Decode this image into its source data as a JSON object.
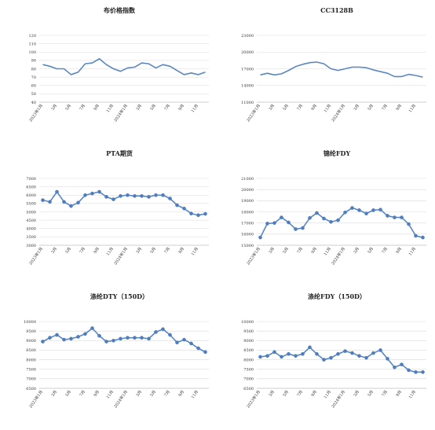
{
  "chart_data": [
    {
      "type": "line",
      "title": "布价格指数",
      "ylim": [
        40,
        120
      ],
      "yticks": [
        40,
        50,
        60,
        70,
        80,
        90,
        100,
        110,
        120
      ],
      "marker": "none",
      "categories": [
        "2023年1月",
        "2月",
        "3月",
        "4月",
        "5月",
        "6月",
        "7月",
        "8月",
        "9月",
        "10月",
        "11月",
        "12月",
        "2024年1月",
        "2月",
        "3月",
        "4月",
        "5月",
        "6月",
        "7月",
        "8月",
        "9月",
        "10月",
        "11月",
        "12月"
      ],
      "xtick_labels": [
        "2023年1月",
        "3月",
        "5月",
        "7月",
        "9月",
        "11月",
        "2024年1月",
        "3月",
        "5月",
        "7月",
        "9月",
        "11月"
      ],
      "values": [
        85,
        83,
        80,
        80,
        73,
        76,
        86,
        87,
        92,
        85,
        80,
        77,
        81,
        82,
        87,
        86,
        81,
        85,
        83,
        78,
        73,
        75,
        73,
        76
      ]
    },
    {
      "type": "line",
      "title": "CC3128B",
      "ylim": [
        11000,
        23000
      ],
      "yticks": [
        11000,
        14000,
        17000,
        20000,
        23000
      ],
      "marker": "none",
      "categories": [
        "2023年1月",
        "2月",
        "3月",
        "4月",
        "5月",
        "6月",
        "7月",
        "8月",
        "9月",
        "10月",
        "11月",
        "12月",
        "2024年1月",
        "2月",
        "3月",
        "4月",
        "5月",
        "6月",
        "7月",
        "8月",
        "9月",
        "10月",
        "11月",
        "12月"
      ],
      "xtick_labels": [
        "2023年1月",
        "3月",
        "5月",
        "7月",
        "9月",
        "11月",
        "2024年1月",
        "3月",
        "5月",
        "7月",
        "9月",
        "11月"
      ],
      "values": [
        15900,
        16200,
        15900,
        16100,
        16700,
        17400,
        17800,
        18100,
        18200,
        17900,
        17000,
        16700,
        17000,
        17300,
        17300,
        17200,
        16800,
        16500,
        16200,
        15600,
        15600,
        16000,
        15800,
        15500
      ]
    },
    {
      "type": "line",
      "title": "PTA期货",
      "ylim": [
        3000,
        7000
      ],
      "yticks": [
        3000,
        3500,
        4000,
        4500,
        5000,
        5500,
        6000,
        6500,
        7000
      ],
      "marker": "circle",
      "categories": [
        "2023年1月",
        "2月",
        "3月",
        "4月",
        "5月",
        "6月",
        "7月",
        "8月",
        "9月",
        "10月",
        "11月",
        "12月",
        "2024年1月",
        "2月",
        "3月",
        "4月",
        "5月",
        "6月",
        "7月",
        "8月",
        "9月",
        "10月",
        "11月",
        "12月"
      ],
      "xtick_labels": [
        "2023年1月",
        "3月",
        "5月",
        "7月",
        "9月",
        "11月",
        "2024年1月",
        "3月",
        "5月",
        "7月",
        "9月",
        "11月"
      ],
      "values": [
        5700,
        5600,
        6200,
        5600,
        5350,
        5550,
        6000,
        6100,
        6200,
        5900,
        5750,
        5950,
        6000,
        5950,
        5950,
        5900,
        6000,
        6000,
        5800,
        5400,
        5200,
        4900,
        4800,
        4880
      ]
    },
    {
      "type": "line",
      "title": "锦纶FDY",
      "ylim": [
        15000,
        21000
      ],
      "yticks": [
        15000,
        16000,
        17000,
        18000,
        19000,
        20000,
        21000
      ],
      "marker": "circle",
      "categories": [
        "2023年1月",
        "2月",
        "3月",
        "4月",
        "5月",
        "6月",
        "7月",
        "8月",
        "9月",
        "10月",
        "11月",
        "12月",
        "2024年1月",
        "2月",
        "3月",
        "4月",
        "5月",
        "6月",
        "7月",
        "8月",
        "9月",
        "10月",
        "11月",
        "12月"
      ],
      "xtick_labels": [
        "2023年1月",
        "3月",
        "5月",
        "7月",
        "9月",
        "11月",
        "2024年1月",
        "3月",
        "5月",
        "7月",
        "9月",
        "11月"
      ],
      "values": [
        15700,
        16950,
        17000,
        17500,
        17050,
        16450,
        16550,
        17450,
        17900,
        17400,
        17100,
        17250,
        17950,
        18350,
        18150,
        17850,
        18150,
        18200,
        17650,
        17500,
        17500,
        16900,
        15850,
        15700
      ]
    },
    {
      "type": "line",
      "title": "涤纶DTY（150D）",
      "ylim": [
        6500,
        10000
      ],
      "yticks": [
        6500,
        7000,
        7500,
        8000,
        8500,
        9000,
        9500,
        10000
      ],
      "marker": "circle",
      "categories": [
        "2023年1月",
        "2月",
        "3月",
        "4月",
        "5月",
        "6月",
        "7月",
        "8月",
        "9月",
        "10月",
        "11月",
        "12月",
        "2024年1月",
        "2月",
        "3月",
        "4月",
        "5月",
        "6月",
        "7月",
        "8月",
        "9月",
        "10月",
        "11月",
        "12月"
      ],
      "xtick_labels": [
        "2023年1月",
        "3月",
        "5月",
        "7月",
        "9月",
        "11月",
        "2024年1月",
        "3月",
        "5月",
        "7月",
        "9月",
        "11月"
      ],
      "values": [
        8950,
        9150,
        9300,
        9050,
        9100,
        9200,
        9350,
        9650,
        9250,
        8950,
        9000,
        9100,
        9150,
        9150,
        9150,
        9100,
        9450,
        9600,
        9300,
        8900,
        9050,
        8850,
        8600,
        8400
      ]
    },
    {
      "type": "line",
      "title": "涤纶FDY（150D）",
      "ylim": [
        6500,
        10000
      ],
      "yticks": [
        6500,
        7000,
        7500,
        8000,
        8500,
        9000,
        9500,
        10000
      ],
      "marker": "circle",
      "categories": [
        "2023年1月",
        "2月",
        "3月",
        "4月",
        "5月",
        "6月",
        "7月",
        "8月",
        "9月",
        "10月",
        "11月",
        "12月",
        "2024年1月",
        "2月",
        "3月",
        "4月",
        "5月",
        "6月",
        "7月",
        "8月",
        "9月",
        "10月",
        "11月",
        "12月"
      ],
      "xtick_labels": [
        "2023年1月",
        "3月",
        "5月",
        "7月",
        "9月",
        "11月",
        "2024年1月",
        "3月",
        "5月",
        "7月",
        "9月",
        "11月"
      ],
      "values": [
        8150,
        8200,
        8400,
        8150,
        8300,
        8200,
        8300,
        8650,
        8300,
        8000,
        8100,
        8300,
        8450,
        8350,
        8200,
        8100,
        8350,
        8500,
        8050,
        7600,
        7750,
        7450,
        7350,
        7350
      ]
    }
  ],
  "colors": {
    "line": "#5b87c0",
    "marker": "#4f7ec0",
    "grid": "#d9d9d9",
    "axis": "#bfbfbf"
  }
}
